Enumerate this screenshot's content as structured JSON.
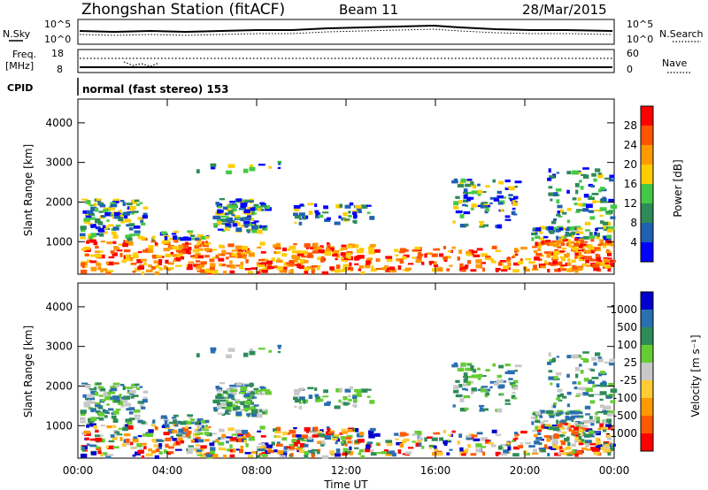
{
  "header": {
    "station": "Zhongshan Station (fitACF)",
    "beam": "Beam 11",
    "date": "28/Mar/2015"
  },
  "labels": {
    "nsky": "N.Sky",
    "freq_line1": "Freq.",
    "freq_line2": "[MHz]",
    "cpid": "CPID",
    "nsearch": "N.Search",
    "nave": "Nave",
    "cpid_text": "normal (fast stereo) 153",
    "x_axis": "Time UT",
    "y_axis": "Slant Range [km]",
    "power_label": "Power [dB]",
    "velocity_label": "Velocity [m s⁻¹]"
  },
  "colors": {
    "power_scale": [
      "#0000ff",
      "#1f5fb4",
      "#2e8b57",
      "#44c944",
      "#ffcc00",
      "#ff9900",
      "#ff5500",
      "#ff0000"
    ],
    "velocity_scale": [
      "#ff0000",
      "#ff5a00",
      "#ff9900",
      "#ffcc33",
      "#c8c8c8",
      "#66cc33",
      "#2e8b57",
      "#2a6fb0",
      "#0000cc"
    ]
  },
  "chart_data": {
    "type": "heatmap",
    "time_ticks": [
      "00:00",
      "04:00",
      "08:00",
      "12:00",
      "16:00",
      "20:00",
      "00:00"
    ],
    "xlabel": "Time UT",
    "range_ticks": [
      "1000",
      "2000",
      "3000",
      "4000"
    ],
    "ylabel": "Slant Range [km]",
    "ylim": [
      180,
      4600
    ],
    "noise_ticks_left": [
      "10^5",
      "10^0"
    ],
    "noise_ticks_right": [
      "10^5",
      "10^0"
    ],
    "freq_ticks": [
      "18",
      "8"
    ],
    "nave_ticks": [
      "60",
      "0"
    ],
    "power_scale_ticks": [
      "4",
      "8",
      "12",
      "16",
      "20",
      "24",
      "28"
    ],
    "velocity_scale_ticks": [
      "-1000",
      "-500",
      "-100",
      "-25",
      "25",
      "100",
      "500",
      "1000"
    ]
  }
}
